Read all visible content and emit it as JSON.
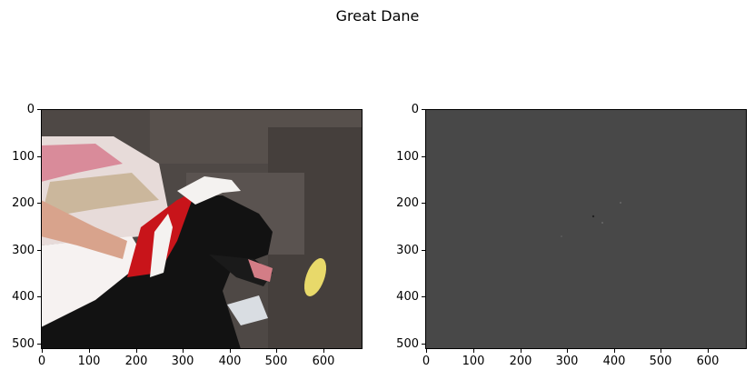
{
  "figure": {
    "title": "Great Dane"
  },
  "left_panel": {
    "image_desc": "photo-of-black-dog-in-santa-hat",
    "x_ticks": [
      "0",
      "100",
      "200",
      "300",
      "400",
      "500",
      "600"
    ],
    "y_ticks": [
      "0",
      "100",
      "200",
      "300",
      "400",
      "500"
    ]
  },
  "right_panel": {
    "image_desc": "gray-saliency-map",
    "x_ticks": [
      "0",
      "100",
      "200",
      "300",
      "400",
      "500",
      "600"
    ],
    "y_ticks": [
      "0",
      "100",
      "200",
      "300",
      "400",
      "500"
    ]
  },
  "colors": {
    "map_gray": "#484848",
    "sofa": "#4a4440",
    "dog": "#111111",
    "hat_red": "#c8141a",
    "hat_white": "#f4f2f0"
  }
}
